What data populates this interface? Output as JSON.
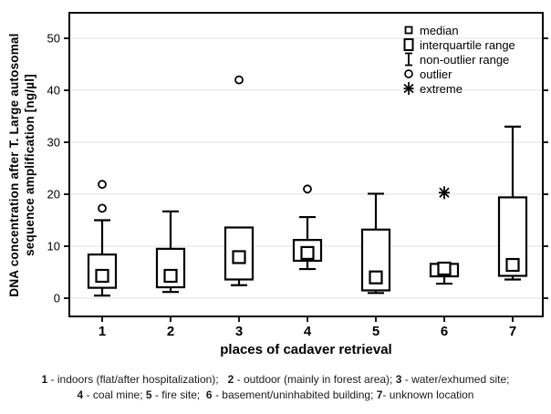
{
  "chart_data": {
    "type": "boxplot",
    "xlabel": "places of cadaver retrieval",
    "ylabel_line1": "DNA concentration after T. Large autosomal",
    "ylabel_line2": "sequence amplification [ng/µl]",
    "categories": [
      "1",
      "2",
      "3",
      "4",
      "5",
      "6",
      "7"
    ],
    "y_ticks": [
      0,
      10,
      20,
      30,
      40,
      50
    ],
    "ylim": [
      -3.5,
      55
    ],
    "grid": "horizontal",
    "legend_position": "top-right-inside",
    "colors": {
      "stroke": "#000000",
      "gridline": "#e8e8e8",
      "background": "#ffffff"
    },
    "legend": [
      {
        "symbol": "median-square",
        "label": "median"
      },
      {
        "symbol": "iqr-box",
        "label": "interquartile range"
      },
      {
        "symbol": "whisker-ibeam",
        "label": "non-outlier range"
      },
      {
        "symbol": "outlier-circle",
        "label": "outlier"
      },
      {
        "symbol": "extreme-asterisk",
        "label": "extreme"
      }
    ],
    "series": [
      {
        "category": "1",
        "median": 4.3,
        "q1": 2.0,
        "q3": 8.4,
        "whisker_low": 0.5,
        "whisker_high": 15.0,
        "outliers": [
          17.3,
          21.9
        ],
        "extremes": []
      },
      {
        "category": "2",
        "median": 4.3,
        "q1": 2.1,
        "q3": 9.5,
        "whisker_low": 1.2,
        "whisker_high": 16.7,
        "outliers": [],
        "extremes": []
      },
      {
        "category": "3",
        "median": 7.9,
        "q1": 3.6,
        "q3": 13.6,
        "whisker_low": 2.5,
        "whisker_high": null,
        "outliers": [
          42.0
        ],
        "extremes": []
      },
      {
        "category": "4",
        "median": 8.7,
        "q1": 7.2,
        "q3": 11.2,
        "whisker_low": 5.6,
        "whisker_high": 15.6,
        "outliers": [
          21.0
        ],
        "extremes": []
      },
      {
        "category": "5",
        "median": 4.0,
        "q1": 1.5,
        "q3": 13.2,
        "whisker_low": 1.0,
        "whisker_high": 20.1,
        "outliers": [],
        "extremes": []
      },
      {
        "category": "6",
        "median": 5.7,
        "q1": 4.2,
        "q3": 6.6,
        "whisker_low": 2.8,
        "whisker_high": null,
        "outliers": [],
        "extremes": [
          20.3
        ]
      },
      {
        "category": "7",
        "median": 6.4,
        "q1": 4.3,
        "q3": 19.4,
        "whisker_low": 3.6,
        "whisker_high": 33.0,
        "outliers": [],
        "extremes": []
      }
    ],
    "caption": {
      "line1": [
        {
          "b": "1"
        },
        {
          "t": " - indoors (flat/after hospitalization);   "
        },
        {
          "b": "2"
        },
        {
          "t": " - outdoor (mainly in forest area); "
        },
        {
          "b": "3"
        },
        {
          "t": " - water/exhumed site;"
        }
      ],
      "line2": [
        {
          "b": "4"
        },
        {
          "t": " - coal mine; "
        },
        {
          "b": "5"
        },
        {
          "t": " - fire site;  "
        },
        {
          "b": "6"
        },
        {
          "t": " - basement/uninhabited building; "
        },
        {
          "b": "7"
        },
        {
          "t": "- unknown location"
        }
      ]
    }
  }
}
